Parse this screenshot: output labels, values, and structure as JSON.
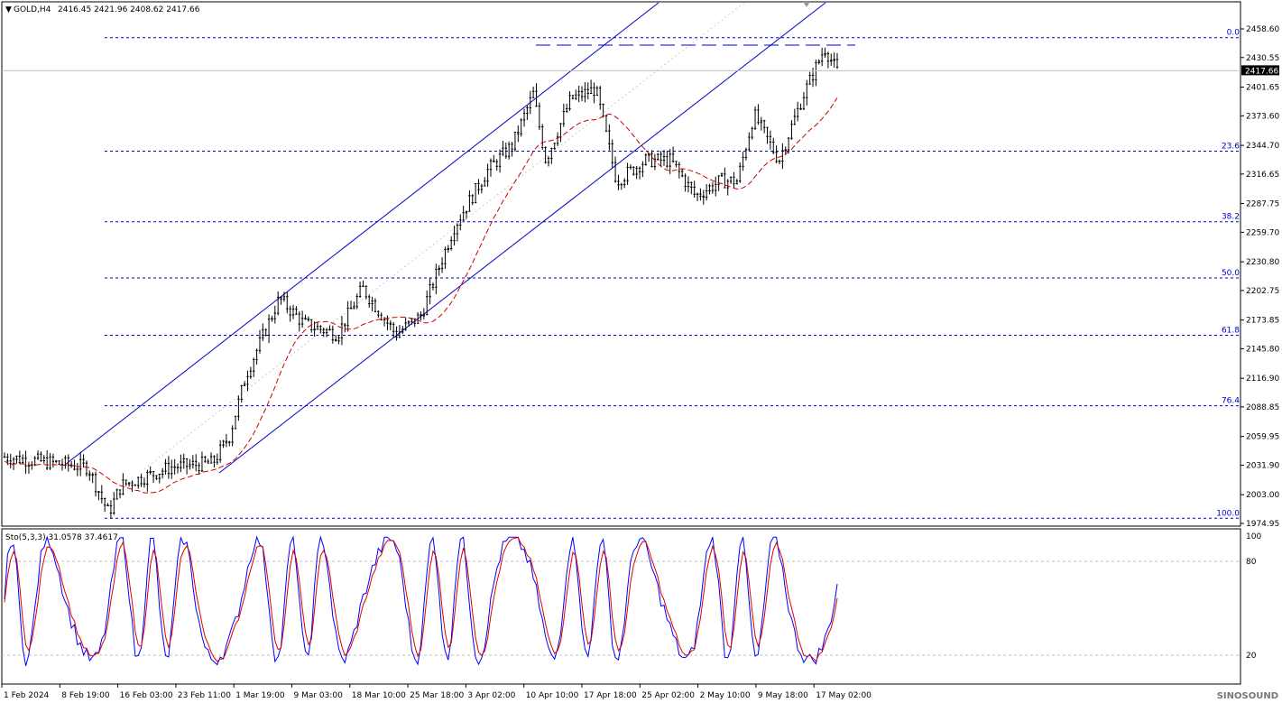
{
  "header": {
    "symbol": "GOLD,H4",
    "ohlc": "2416.45 2421.96 2408.62 2417.66"
  },
  "stoch_header": "Sto(5,3,3) 31.0578 37.4617",
  "current_price": "2417.66",
  "watermark": "SINOSOUND",
  "colors": {
    "candles": "#000000",
    "ma": "#cc0000",
    "channel": "#0000c8",
    "fib": "#0000c8",
    "stoch_main": "#0000ff",
    "stoch_signal": "#dd0000",
    "grid": "#c0c0c0"
  },
  "chart_data": [
    {
      "type": "candlestick",
      "title": "GOLD,H4",
      "ylim": [
        1965,
        2475
      ],
      "price_ticks": [
        "2458.60",
        "2430.55",
        "2401.65",
        "2373.60",
        "2344.70",
        "2316.65",
        "2287.75",
        "2259.70",
        "2230.80",
        "2202.75",
        "2173.85",
        "2145.80",
        "2116.90",
        "2088.85",
        "2059.95",
        "2031.90",
        "2003.00",
        "1974.95"
      ],
      "x_ticks": [
        "1 Feb 2024",
        "8 Feb 19:00",
        "16 Feb 03:00",
        "23 Feb 11:00",
        "1 Mar 19:00",
        "9 Mar 03:00",
        "18 Mar 10:00",
        "25 Mar 18:00",
        "3 Apr 02:00",
        "10 Apr 10:00",
        "17 Apr 18:00",
        "25 Apr 02:00",
        "2 May 10:00",
        "9 May 18:00",
        "17 May 02:00"
      ],
      "approx_close_path": [
        {
          "x": "1 Feb 2024",
          "y": 2040
        },
        {
          "x": "8 Feb 19:00",
          "y": 2030
        },
        {
          "x": "16 Feb 03:00",
          "y": 2010
        },
        {
          "x": "23 Feb 11:00",
          "y": 2033
        },
        {
          "x": "1 Mar 19:00",
          "y": 2085
        },
        {
          "x": "9 Mar 03:00",
          "y": 2178
        },
        {
          "x": "18 Mar 10:00",
          "y": 2158
        },
        {
          "x": "25 Mar 18:00",
          "y": 2172
        },
        {
          "x": "3 Apr 02:00",
          "y": 2280
        },
        {
          "x": "10 Apr 10:00",
          "y": 2345
        },
        {
          "x": "17 Apr 18:00",
          "y": 2385
        },
        {
          "x": "25 Apr 02:00",
          "y": 2320
        },
        {
          "x": "2 May 10:00",
          "y": 2300
        },
        {
          "x": "9 May 18:00",
          "y": 2350
        },
        {
          "x": "17 May 02:00",
          "y": 2400
        }
      ],
      "fibonacci_levels": [
        {
          "label": "0.0",
          "price": 2450
        },
        {
          "label": "23.6",
          "price": 2339
        },
        {
          "label": "38.2",
          "price": 2270
        },
        {
          "label": "50.0",
          "price": 2215
        },
        {
          "label": "61.8",
          "price": 2159
        },
        {
          "label": "76.4",
          "price": 2090
        },
        {
          "label": "100.0",
          "price": 1980
        }
      ],
      "resistance_line": {
        "price": 2432,
        "style": "long-dash"
      },
      "current_price_line": {
        "price": 2417.66
      }
    },
    {
      "type": "line",
      "title": "Sto(5,3,3)",
      "ylim": [
        0,
        105
      ],
      "y_ticks": [
        "100",
        "80",
        "20"
      ],
      "levels": [
        80,
        20
      ],
      "series": [
        {
          "name": "main",
          "value": 31.0578
        },
        {
          "name": "signal",
          "value": 37.4617
        }
      ]
    }
  ]
}
